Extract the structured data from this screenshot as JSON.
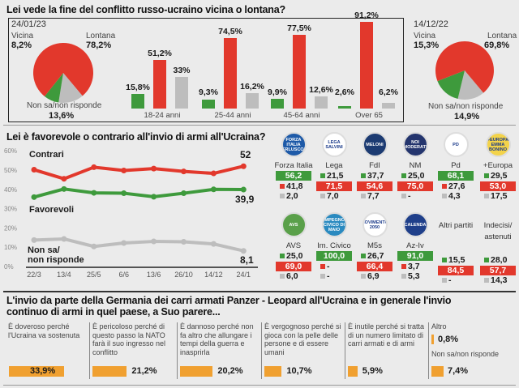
{
  "section1": {
    "title": "Lei vede la fine del conflitto russo-ucraino vicina o lontana?",
    "pie_current": {
      "date": "24/01/23",
      "vicina_label": "Vicina",
      "vicina": "8,2%",
      "lontana_label": "Lontana",
      "lontana": "78,2%",
      "nonsa_label": "Non sa/non risponde",
      "nonsa": "13,6%"
    },
    "pie_previous": {
      "date": "14/12/22",
      "vicina_label": "Vicina",
      "vicina": "15,3%",
      "lontana_label": "Lontana",
      "lontana": "69,8%",
      "nonsa_label": "Non sa/non risponde",
      "nonsa": "14,9%"
    },
    "age_groups": [
      {
        "label": "18-24 anni",
        "values": [
          "15,8%",
          "51,2%",
          "33%"
        ]
      },
      {
        "label": "25-44 anni",
        "values": [
          "9,3%",
          "74,5%",
          "16,2%"
        ]
      },
      {
        "label": "45-64 anni",
        "values": [
          "9,9%",
          "77,5%",
          "12,6%"
        ]
      },
      {
        "label": "Over 65",
        "values": [
          "2,6%",
          "91,2%",
          "6,2%"
        ]
      }
    ]
  },
  "section2": {
    "title": "Lei è favorevole o contrario all'invio di armi all'Ucraina?",
    "yticks": [
      "0%",
      "10%",
      "20%",
      "30%",
      "40%",
      "50%",
      "60%"
    ],
    "series_labels": {
      "contrari": "Contrari",
      "favorevoli": "Favorevoli",
      "nonsa1": "Non sa/",
      "nonsa2": "non risponde"
    },
    "end_labels": {
      "contrari": "52",
      "favorevoli": "39,9",
      "nonsa": "8,1"
    },
    "parties": [
      {
        "name": "Forza Italia",
        "logo_text": "FORZA ITALIA BERLUSCONI",
        "logo_color": "#1e5aa8",
        "values": [
          "56,2",
          "41,8",
          "2,0"
        ]
      },
      {
        "name": "Lega",
        "logo_text": "LEGA SALVINI",
        "logo_color": "#ffffff",
        "values": [
          "21,5",
          "71,5",
          "7,0"
        ]
      },
      {
        "name": "FdI",
        "logo_text": "MELONI",
        "logo_color": "#1c3b72",
        "values": [
          "37,7",
          "54,6",
          "7,7"
        ]
      },
      {
        "name": "NM",
        "logo_text": "NOI MODERATI",
        "logo_color": "#24356e",
        "values": [
          "25,0",
          "75,0",
          "-"
        ]
      },
      {
        "name": "Pd",
        "logo_text": "PD",
        "logo_color": "#ffffff",
        "values": [
          "68,1",
          "27,6",
          "4,3"
        ]
      },
      {
        "name": "+Europa",
        "logo_text": "+EUROPA EMMA BONINO",
        "logo_color": "#f3d34a",
        "values": [
          "29,5",
          "53,0",
          "17,5"
        ]
      },
      {
        "name": "AVS",
        "logo_text": "AVS",
        "logo_color": "#5aa04a",
        "values": [
          "25,0",
          "69,0",
          "6,0"
        ]
      },
      {
        "name": "Im. Civico",
        "logo_text": "IMPEGNO CIVICO DI MAIO",
        "logo_color": "#2a8ac0",
        "values": [
          "100,0",
          "-",
          "-"
        ]
      },
      {
        "name": "M5s",
        "logo_text": "MOVIMENTO 2050",
        "logo_color": "#ffffff",
        "values": [
          "26,7",
          "66,4",
          "6,9"
        ]
      },
      {
        "name": "Az-Iv",
        "logo_text": "CALENDA",
        "logo_color": "#1f3f8a",
        "values": [
          "91,0",
          "3,7",
          "5,3"
        ]
      },
      {
        "name": "Altri partiti",
        "logo_text": "",
        "logo_color": "",
        "values": [
          "15,5",
          "84,5",
          "-"
        ]
      },
      {
        "name": "Indecisi/ astenuti",
        "logo_text": "",
        "logo_color": "",
        "values": [
          "28,0",
          "57,7",
          "14,3"
        ]
      }
    ]
  },
  "section3": {
    "title": "L'invio da parte della Germania dei carri armati Panzer - Leopard all'Ucraina e in generale l'invio continuo di armi in quel paese, a Suo parere...",
    "options": [
      {
        "text": "È doveroso perché l'Ucraina va sostenuta",
        "value": "33,9%"
      },
      {
        "text": "È pericoloso perché di questo passo la NATO farà il suo ingresso nel conflitto",
        "value": "21,2%"
      },
      {
        "text": "È dannoso perché non fa altro che allungare i tempi della guerra e inasprirla",
        "value": "20,2%"
      },
      {
        "text": "È vergognoso perché si gioca con la pelle delle persone e di essere umani",
        "value": "10,7%"
      },
      {
        "text": "È inutile perché si tratta di un numero limitato di carri armati e di armi",
        "value": "5,9%"
      }
    ],
    "altro": {
      "text": "Altro",
      "value": "0,8%"
    },
    "nonsa": {
      "text": "Non sa/non risponde",
      "value": "7,4%"
    }
  },
  "colors": {
    "green": "#3e9a3c",
    "red": "#e2382c",
    "gray": "#bdbdbd",
    "orange": "#f0a030"
  },
  "chart_data": [
    {
      "type": "pie",
      "title": "24/01/23",
      "categories": [
        "Vicina",
        "Lontana",
        "Non sa/non risponde"
      ],
      "values": [
        8.2,
        78.2,
        13.6
      ]
    },
    {
      "type": "bar",
      "categories": [
        "18-24 anni",
        "25-44 anni",
        "45-64 anni",
        "Over 65"
      ],
      "series": [
        {
          "values": [
            15.8,
            9.3,
            9.9,
            2.6
          ]
        },
        {
          "values": [
            51.2,
            74.5,
            77.5,
            91.2
          ]
        },
        {
          "values": [
            33,
            16.2,
            12.6,
            6.2
          ]
        }
      ]
    },
    {
      "type": "pie",
      "title": "14/12/22",
      "categories": [
        "Vicina",
        "Lontana",
        "Non sa/non risponde"
      ],
      "values": [
        15.3,
        69.8,
        14.9
      ]
    },
    {
      "type": "line",
      "categories": [
        "22/3",
        "13/4",
        "25/5",
        "6/6",
        "13/6",
        "26/10",
        "14/12",
        "24/1"
      ],
      "ylim": [
        0,
        60
      ],
      "grid": false,
      "series": [
        {
          "name": "Contrari",
          "values": [
            50.2,
            45.5,
            51.5,
            49.8,
            50.8,
            49.3,
            48.3,
            52
          ]
        },
        {
          "name": "Favorevoli",
          "values": [
            36,
            40.2,
            38.2,
            38,
            36.2,
            38,
            40,
            39.9
          ]
        },
        {
          "name": "Non sa/non risponde",
          "values": [
            13.7,
            14.3,
            10.4,
            12.2,
            13,
            12.8,
            11.7,
            8.1
          ]
        }
      ]
    },
    {
      "type": "bar",
      "categories": [
        "È doveroso",
        "È pericoloso",
        "È dannoso",
        "È vergognoso",
        "È inutile",
        "Altro",
        "Non sa/non risponde"
      ],
      "values": [
        33.9,
        21.2,
        20.2,
        10.7,
        5.9,
        0.8,
        7.4
      ]
    }
  ]
}
